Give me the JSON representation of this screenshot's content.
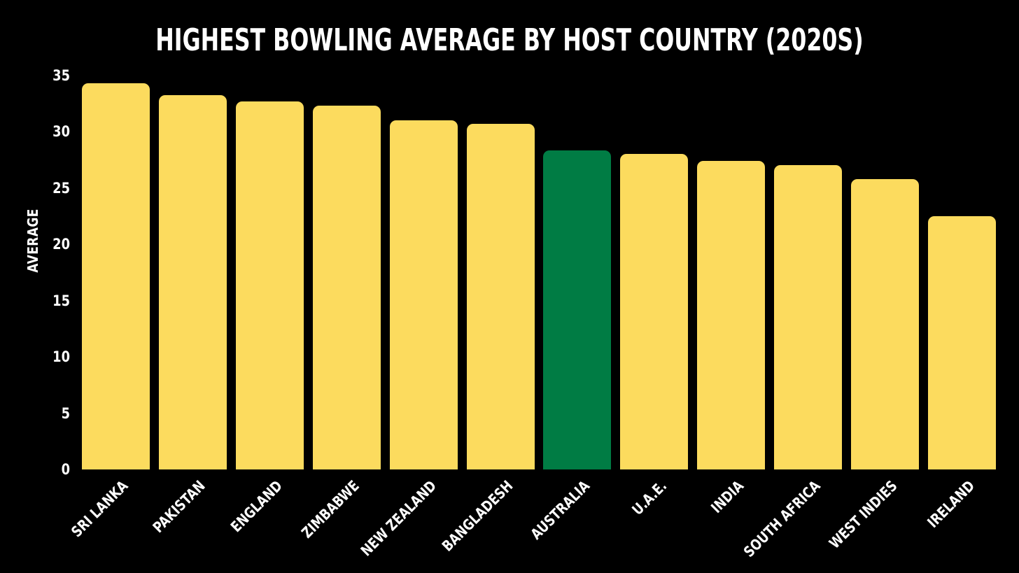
{
  "chart_data": {
    "type": "bar",
    "title": "HIGHEST BOWLING AVERAGE BY HOST COUNTRY (2020S)",
    "xlabel": "",
    "ylabel": "AVERAGE",
    "categories": [
      "SRI LANKA",
      "PAKISTAN",
      "ENGLAND",
      "ZIMBABWE",
      "NEW ZEALAND",
      "BANGLADESH",
      "AUSTRALIA",
      "U.A.E.",
      "INDIA",
      "SOUTH AFRICA",
      "WEST INDIES",
      "IRELAND"
    ],
    "values": [
      34.3,
      33.2,
      32.7,
      32.3,
      31.0,
      30.7,
      28.3,
      28.0,
      27.4,
      27.0,
      25.8,
      22.5
    ],
    "ylim": [
      0,
      35
    ],
    "yticks": [
      0,
      5,
      10,
      15,
      20,
      25,
      30,
      35
    ],
    "xtick_rotation": 45,
    "grid": false,
    "legend_position": "none",
    "highlight_category": "AUSTRALIA",
    "colors": {
      "background": "#000000",
      "text": "#ffffff",
      "bar_default": "#FCDB5E",
      "bar_highlight": "#007C44"
    }
  }
}
